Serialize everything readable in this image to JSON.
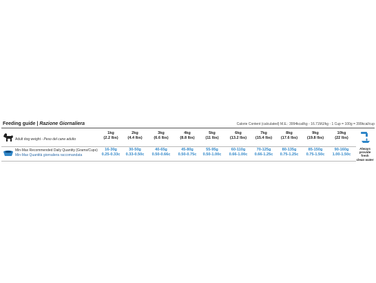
{
  "header": {
    "title": "Feeding guide",
    "title_sep": " | ",
    "title_it": "Razione Giornaliera",
    "calorie": "Calorie Content (calculated) M.E.: 3994kcal/kg - 16.71MJ/kg - 1 Cup = 100g = 399kcal/cup"
  },
  "weight_row": {
    "label": "Adult dog weight - ",
    "label_it": "Peso del cane adulto",
    "icon": "dog-icon"
  },
  "qty_row": {
    "label_line1": "Min-Max Recommended Daily Quantity (Grams/Cups)",
    "label_line2": "Min-Max Quantità giornaliera raccomandata",
    "icon": "bowl-icon"
  },
  "columns": [
    {
      "kg": "1kg",
      "lbs": "(2.2 lbs)",
      "grams": "16-30g",
      "cups": "0.25-0.33c"
    },
    {
      "kg": "2kg",
      "lbs": "(4.4 lbs)",
      "grams": "30-50g",
      "cups": "0.33-0.50c"
    },
    {
      "kg": "3kg",
      "lbs": "(6.6 lbs)",
      "grams": "40-65g",
      "cups": "0.50-0.66c"
    },
    {
      "kg": "4kg",
      "lbs": "(8.8 lbs)",
      "grams": "45-80g",
      "cups": "0.50-0.75c"
    },
    {
      "kg": "5kg",
      "lbs": "(11 lbs)",
      "grams": "55-95g",
      "cups": "0.50-1.00c"
    },
    {
      "kg": "6kg",
      "lbs": "(13.2 lbs)",
      "grams": "60-110g",
      "cups": "0.66-1.00c"
    },
    {
      "kg": "7kg",
      "lbs": "(15.4 lbs)",
      "grams": "70-125g",
      "cups": "0.66-1.25c"
    },
    {
      "kg": "8kg",
      "lbs": "(17.6 lbs)",
      "grams": "80-135g",
      "cups": "0.75-1.25c"
    },
    {
      "kg": "9kg",
      "lbs": "(19.8 lbs)",
      "grams": "85-150g",
      "cups": "0.75-1.50c"
    },
    {
      "kg": "10kg",
      "lbs": "(22 lbs)",
      "grams": "90-160g",
      "cups": "1.00-1.50c"
    }
  ],
  "water": {
    "icon": "water-tap-icon",
    "line1": "Always",
    "line2": "provide fresh",
    "line3": "clean water"
  },
  "colors": {
    "accent_blue": "#2f86c8",
    "text_dark": "#222222",
    "rule": "#555555"
  }
}
